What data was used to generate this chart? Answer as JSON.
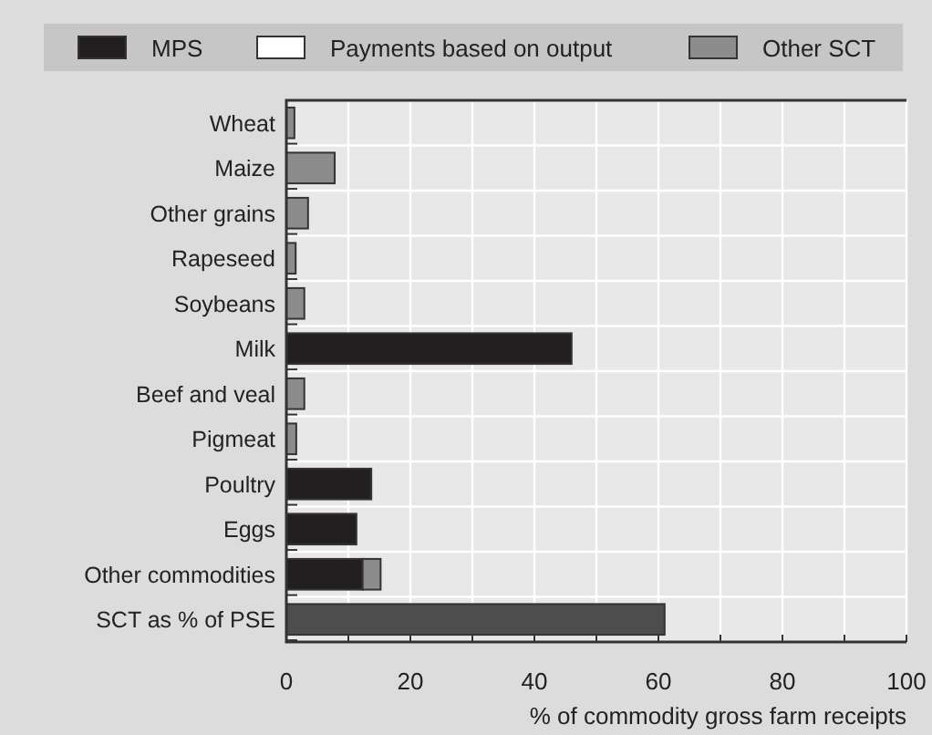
{
  "chart_data": {
    "type": "bar",
    "orientation": "horizontal",
    "stacked": true,
    "xlabel": "% of commodity gross farm receipts",
    "categories": [
      "Wheat",
      "Maize",
      "Other grains",
      "Rapeseed",
      "Soybeans",
      "Milk",
      "Beef and veal",
      "Pigmeat",
      "Poultry",
      "Eggs",
      "Other commodities",
      "SCT as % of PSE"
    ],
    "series": [
      {
        "name": "MPS",
        "color": "#231f20",
        "values": [
          0,
          0,
          0,
          0,
          0,
          46,
          0,
          0,
          13.7,
          11.3,
          12.3,
          0
        ]
      },
      {
        "name": "Payments based on output",
        "color": "#ffffff",
        "values": [
          0,
          0,
          0,
          0,
          0,
          0,
          0,
          0,
          0,
          0,
          0,
          0
        ]
      },
      {
        "name": "Other SCT",
        "color": "#8c8c8c",
        "values": [
          1.3,
          7.8,
          3.5,
          1.5,
          2.9,
          0,
          2.9,
          1.6,
          0,
          0,
          2.9,
          0
        ]
      },
      {
        "color": "#4d4d4d",
        "values": [
          null,
          null,
          null,
          null,
          null,
          null,
          null,
          null,
          null,
          null,
          null,
          61
        ]
      }
    ],
    "xlim": [
      0,
      100
    ],
    "xticks": [
      0,
      {
        "value": 10,
        "label": null
      },
      20,
      {
        "value": 30,
        "label": null
      },
      40,
      {
        "value": 50,
        "label": null
      },
      60,
      {
        "value": 70,
        "label": null
      },
      80,
      {
        "value": 90,
        "label": null
      },
      100
    ],
    "grid": "x",
    "legend": "top"
  }
}
